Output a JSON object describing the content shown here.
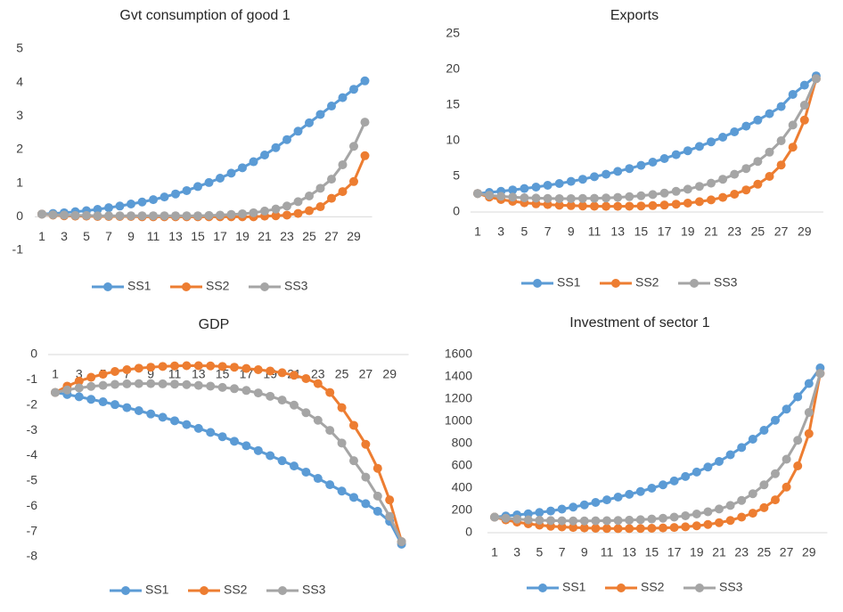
{
  "chart_data": [
    {
      "type": "line",
      "title": "Gvt consumption of good 1",
      "categories": [
        "1",
        null,
        "3",
        null,
        "5",
        null,
        "7",
        null,
        "9",
        null,
        "11",
        null,
        "13",
        null,
        "15",
        null,
        "17",
        null,
        "19",
        null,
        "21",
        null,
        "23",
        null,
        "25",
        null,
        "27",
        null,
        "29",
        null
      ],
      "series": [
        {
          "name": "SS1",
          "color": "#5b9bd5",
          "values": [
            0.08,
            0.1,
            0.12,
            0.15,
            0.18,
            0.22,
            0.27,
            0.32,
            0.38,
            0.44,
            0.51,
            0.59,
            0.68,
            0.78,
            0.9,
            1.02,
            1.15,
            1.3,
            1.46,
            1.64,
            1.84,
            2.06,
            2.3,
            2.55,
            2.8,
            3.05,
            3.3,
            3.55,
            3.8,
            4.05
          ]
        },
        {
          "name": "SS2",
          "color": "#ed7d31",
          "values": [
            0.08,
            0.05,
            0.03,
            0.02,
            0.02,
            0.01,
            0.01,
            0.01,
            0.01,
            0,
            0,
            0,
            0,
            0,
            0,
            0,
            0,
            0,
            0,
            0,
            0.02,
            0.03,
            0.05,
            0.1,
            0.18,
            0.3,
            0.55,
            0.75,
            1.05,
            1.82
          ]
        },
        {
          "name": "SS3",
          "color": "#a5a5a5",
          "values": [
            0.08,
            0.06,
            0.05,
            0.04,
            0.04,
            0.03,
            0.03,
            0.03,
            0.03,
            0.03,
            0.03,
            0.03,
            0.03,
            0.03,
            0.03,
            0.04,
            0.05,
            0.07,
            0.09,
            0.12,
            0.17,
            0.23,
            0.32,
            0.45,
            0.62,
            0.85,
            1.12,
            1.55,
            2.1,
            2.82
          ]
        }
      ],
      "ylim": [
        -1,
        5
      ],
      "yticks": [
        -1,
        0,
        1,
        2,
        3,
        4,
        5
      ],
      "grid": false
    },
    {
      "type": "line",
      "title": "Exports",
      "categories": [
        "1",
        null,
        "3",
        null,
        "5",
        null,
        "7",
        null,
        "9",
        null,
        "11",
        null,
        "13",
        null,
        "15",
        null,
        "17",
        null,
        "19",
        null,
        "21",
        null,
        "23",
        null,
        "25",
        null,
        "27",
        null,
        "29",
        null
      ],
      "series": [
        {
          "name": "SS1",
          "color": "#5b9bd5",
          "values": [
            2.6,
            2.75,
            2.9,
            3.1,
            3.3,
            3.5,
            3.75,
            4.0,
            4.3,
            4.6,
            4.95,
            5.3,
            5.7,
            6.1,
            6.55,
            7.0,
            7.5,
            8.05,
            8.6,
            9.2,
            9.85,
            10.5,
            11.25,
            12.05,
            12.9,
            13.8,
            14.8,
            16.5,
            17.8,
            19.1
          ]
        },
        {
          "name": "SS2",
          "color": "#ed7d31",
          "values": [
            2.6,
            2.1,
            1.75,
            1.5,
            1.3,
            1.15,
            1.05,
            0.95,
            0.9,
            0.85,
            0.82,
            0.8,
            0.8,
            0.82,
            0.85,
            0.9,
            0.98,
            1.1,
            1.25,
            1.45,
            1.7,
            2.05,
            2.5,
            3.1,
            3.9,
            5.0,
            6.6,
            9.1,
            12.9,
            18.7
          ]
        },
        {
          "name": "SS3",
          "color": "#a5a5a5",
          "values": [
            2.6,
            2.35,
            2.2,
            2.1,
            2.0,
            1.95,
            1.9,
            1.88,
            1.88,
            1.9,
            1.92,
            1.97,
            2.05,
            2.15,
            2.28,
            2.45,
            2.65,
            2.9,
            3.2,
            3.6,
            4.05,
            4.6,
            5.3,
            6.1,
            7.1,
            8.4,
            10.0,
            12.2,
            15.0,
            18.7
          ]
        }
      ],
      "ylim": [
        0,
        25
      ],
      "yticks": [
        0,
        5,
        10,
        15,
        20,
        25
      ],
      "grid": false
    },
    {
      "type": "line",
      "title": "GDP",
      "categories": [
        "1",
        null,
        "3",
        null,
        "5",
        null,
        "7",
        null,
        "9",
        null,
        "11",
        null,
        "13",
        null,
        "15",
        null,
        "17",
        null,
        "19",
        null,
        "21",
        null,
        "23",
        null,
        "25",
        null,
        "27",
        null,
        "29",
        null
      ],
      "series": [
        {
          "name": "SS1",
          "color": "#5b9bd5",
          "values": [
            -1.5,
            -1.58,
            -1.67,
            -1.77,
            -1.87,
            -1.98,
            -2.1,
            -2.22,
            -2.35,
            -2.48,
            -2.62,
            -2.77,
            -2.92,
            -3.08,
            -3.25,
            -3.43,
            -3.61,
            -3.8,
            -4.0,
            -4.2,
            -4.41,
            -4.65,
            -4.9,
            -5.15,
            -5.4,
            -5.65,
            -5.9,
            -6.2,
            -6.6,
            -7.5
          ]
        },
        {
          "name": "SS2",
          "color": "#ed7d31",
          "values": [
            -1.5,
            -1.25,
            -1.05,
            -0.9,
            -0.78,
            -0.67,
            -0.6,
            -0.54,
            -0.5,
            -0.47,
            -0.45,
            -0.44,
            -0.44,
            -0.45,
            -0.47,
            -0.5,
            -0.55,
            -0.6,
            -0.65,
            -0.72,
            -0.82,
            -0.95,
            -1.15,
            -1.5,
            -2.1,
            -2.8,
            -3.55,
            -4.5,
            -5.75,
            -7.4
          ]
        },
        {
          "name": "SS3",
          "color": "#a5a5a5",
          "values": [
            -1.5,
            -1.4,
            -1.32,
            -1.26,
            -1.22,
            -1.18,
            -1.16,
            -1.15,
            -1.15,
            -1.16,
            -1.17,
            -1.19,
            -1.22,
            -1.25,
            -1.3,
            -1.35,
            -1.42,
            -1.52,
            -1.65,
            -1.8,
            -2.0,
            -2.3,
            -2.6,
            -3.0,
            -3.5,
            -4.2,
            -4.85,
            -5.6,
            -6.4,
            -7.4
          ]
        }
      ],
      "ylim": [
        -8,
        0
      ],
      "yticks": [
        -8,
        -7,
        -6,
        -5,
        -4,
        -3,
        -2,
        -1,
        0
      ],
      "grid": false
    },
    {
      "type": "line",
      "title": "Investment of sector 1",
      "categories": [
        "1",
        null,
        "3",
        null,
        "5",
        null,
        "7",
        null,
        "9",
        null,
        "11",
        null,
        "13",
        null,
        "15",
        null,
        "17",
        null,
        "19",
        null,
        "21",
        null,
        "23",
        null,
        "25",
        null,
        "27",
        null,
        "29",
        null
      ],
      "series": [
        {
          "name": "SS1",
          "color": "#5b9bd5",
          "values": [
            140,
            150,
            160,
            170,
            182,
            195,
            212,
            230,
            250,
            272,
            295,
            320,
            345,
            370,
            400,
            430,
            465,
            505,
            545,
            590,
            640,
            700,
            765,
            840,
            920,
            1010,
            1110,
            1220,
            1340,
            1480
          ]
        },
        {
          "name": "SS2",
          "color": "#ed7d31",
          "values": [
            140,
            115,
            95,
            80,
            68,
            58,
            52,
            47,
            43,
            40,
            38,
            37,
            37,
            38,
            40,
            43,
            47,
            53,
            62,
            74,
            90,
            110,
            140,
            175,
            225,
            295,
            410,
            600,
            890,
            1430
          ]
        },
        {
          "name": "SS3",
          "color": "#a5a5a5",
          "values": [
            140,
            130,
            122,
            116,
            112,
            109,
            107,
            106,
            106,
            107,
            108,
            110,
            113,
            117,
            123,
            130,
            140,
            152,
            168,
            188,
            213,
            245,
            290,
            350,
            430,
            530,
            660,
            830,
            1080,
            1430
          ]
        }
      ],
      "ylim": [
        0,
        1600
      ],
      "yticks": [
        0,
        200,
        400,
        600,
        800,
        1000,
        1200,
        1400,
        1600
      ],
      "grid": false
    }
  ]
}
